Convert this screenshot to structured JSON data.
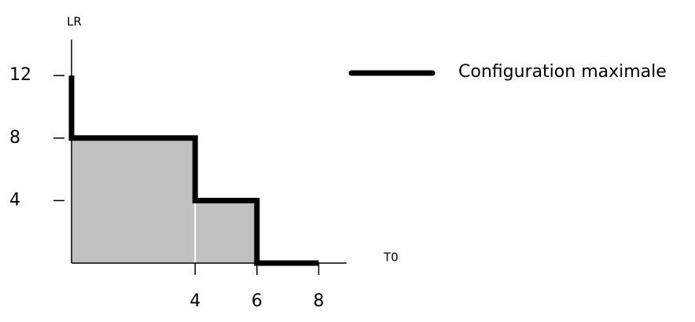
{
  "chart_data": {
    "type": "step",
    "x_label": "T0",
    "y_label": "LR",
    "x": [
      0,
      0,
      4,
      4,
      6,
      6,
      8
    ],
    "series": [
      {
        "name": "Configuration maximale",
        "color": "#000000",
        "fill": "#c0c0c0",
        "values": [
          12,
          8,
          8,
          4,
          4,
          0,
          0
        ]
      }
    ],
    "xlim": [
      0,
      8.9
    ],
    "ylim": [
      0,
      14.3
    ],
    "xticks": [
      4,
      6,
      8
    ],
    "yticks": [
      4,
      8,
      12
    ]
  }
}
